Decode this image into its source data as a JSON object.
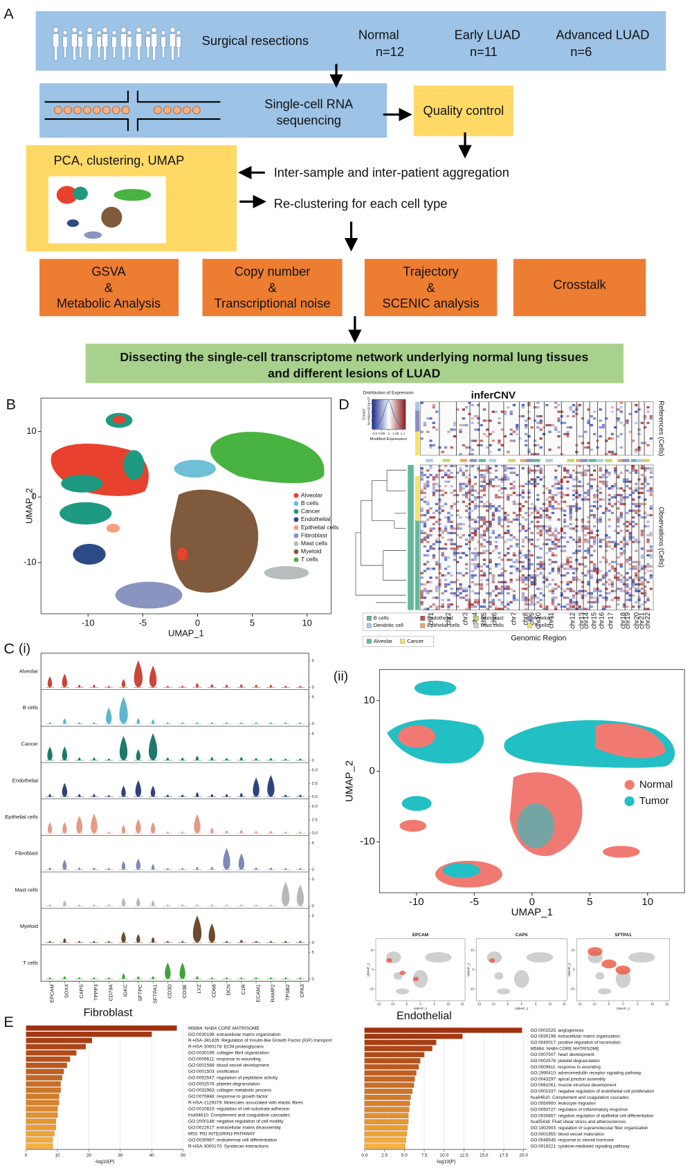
{
  "panel_a": {
    "label": "A",
    "resections": "Surgical resections",
    "groups": [
      {
        "name": "Normal",
        "n": "n=12"
      },
      {
        "name": "Early LUAD",
        "n": "n=11"
      },
      {
        "name": "Advanced LUAD",
        "n": "n=6"
      }
    ],
    "sequencing": [
      "Single-cell RNA",
      "sequencing"
    ],
    "qc": "Quality control",
    "pca": "PCA, clustering, UMAP",
    "aggregation": "Inter-sample and inter-patient aggregation",
    "reclustering": "Re-clustering for each cell type",
    "analyses": [
      [
        "GSVA",
        "&",
        "Metabolic Analysis"
      ],
      [
        "Copy number",
        "&",
        "Transcriptional noise"
      ],
      [
        "Trajectory",
        "&",
        "SCENIC analysis"
      ],
      [
        "Crosstalk"
      ]
    ],
    "conclusion": [
      "Dissecting the single-cell transcriptome network underlying normal lung tissues",
      "and different lesions of LUAD"
    ]
  },
  "panel_b": {
    "label": "B",
    "xlabel": "UMAP_1",
    "ylabel": "UMAP_2",
    "xlim": [
      -14.3,
      12.2
    ],
    "ylim": [
      -17.8,
      15.1
    ],
    "xticks": [
      -10,
      -5,
      0,
      5,
      10
    ],
    "yticks": [
      -10,
      0,
      10
    ],
    "legend": [
      {
        "name": "Alveolar",
        "color": "#e8412e"
      },
      {
        "name": "B cells",
        "color": "#6fc0d6"
      },
      {
        "name": "Cancer",
        "color": "#1e9a82"
      },
      {
        "name": "Endothelial",
        "color": "#2c4a86"
      },
      {
        "name": "Epithelial cells",
        "color": "#f2a07f"
      },
      {
        "name": "Fibroblast",
        "color": "#8a94c0"
      },
      {
        "name": "Mast cells",
        "color": "#b7bcbc"
      },
      {
        "name": "Myeloid",
        "color": "#7f5a3c"
      },
      {
        "name": "T cells",
        "color": "#48b341"
      }
    ]
  },
  "panel_c": {
    "label": "C",
    "sub1": "(i)",
    "sub2": "(ii)",
    "genes": [
      "EPCAM",
      "SOX4",
      "CAPS",
      "TPPP3",
      "CD79A",
      "IGKC",
      "SFTPC",
      "SFTPA1",
      "CD3D",
      "CD3E",
      "LYZ",
      "CD68",
      "DCN",
      "C1R",
      "ECAM1",
      "RAMP2",
      "TPSB2",
      "CPA3"
    ],
    "cell_types": [
      "Alveolar",
      "B cells",
      "Cancer",
      "Endothelial",
      "Epithelial cells",
      "Fibroblast",
      "Mast cells",
      "Myeloid",
      "T cells"
    ],
    "colors": [
      "#c9473a",
      "#5fb6cc",
      "#1d7a6a",
      "#2f437a",
      "#e49a85",
      "#7f8ab8",
      "#b5b9b9",
      "#6b4a30",
      "#3ea33a"
    ],
    "row_ylim": [
      0,
      6
    ],
    "row_ticks": [
      [
        0,
        5
      ],
      [
        0,
        5
      ],
      [
        0,
        5
      ],
      [
        {
          "value": 0,
          "label": "0.0"
        },
        2.5,
        {
          "value": 5,
          "label": "5.0"
        }
      ],
      [
        {
          "value": 0,
          "label": "0.0"
        },
        2.5,
        {
          "value": 5,
          "label": "5.0"
        }
      ],
      [
        0,
        5
      ],
      [
        0,
        5
      ],
      [
        0,
        5
      ],
      [
        0,
        5
      ]
    ],
    "violin_max": [
      [
        2,
        2.5,
        0.5,
        0.5,
        0.3,
        1.5,
        5,
        4,
        0.3,
        0.3,
        0.8,
        0.6,
        0.5,
        0.6,
        0.5,
        0.5,
        0.3,
        0.3
      ],
      [
        0.3,
        1,
        0.3,
        0.3,
        3,
        5,
        1,
        0.8,
        0.3,
        0.3,
        0.3,
        0.3,
        0.3,
        0.3,
        0.3,
        0.3,
        0.3,
        0.3
      ],
      [
        2.5,
        2.5,
        0.5,
        0.5,
        0.3,
        4.5,
        2,
        5,
        0.5,
        0.5,
        0.8,
        0.6,
        0.4,
        0.6,
        0.4,
        0.4,
        0.3,
        0.3
      ],
      [
        0.5,
        2.5,
        0.5,
        0.5,
        0.3,
        2,
        3,
        2,
        0.4,
        0.4,
        0.8,
        0.5,
        0.5,
        0.7,
        3.5,
        4,
        0.4,
        0.4
      ],
      [
        2,
        2,
        3.2,
        3.6,
        0.3,
        1.5,
        2.6,
        2,
        0.3,
        0.3,
        3.5,
        1,
        0.5,
        0.6,
        0.4,
        0.4,
        0.3,
        0.3
      ],
      [
        0.4,
        1.8,
        0.4,
        0.4,
        0.3,
        1.5,
        2,
        1,
        0.3,
        0.3,
        0.5,
        0.5,
        4,
        3,
        0.4,
        0.4,
        0.3,
        0.3
      ],
      [
        0.3,
        1,
        0.3,
        0.3,
        0.3,
        1.5,
        1.5,
        1,
        0.3,
        0.3,
        0.3,
        0.3,
        0.3,
        0.3,
        0.3,
        0.3,
        4.5,
        4
      ],
      [
        0.3,
        0.8,
        0.3,
        0.3,
        0.3,
        2,
        1.5,
        1,
        0.3,
        0.3,
        5,
        3.5,
        0.3,
        0.5,
        0.3,
        0.3,
        0.3,
        0.3
      ],
      [
        0.3,
        0.5,
        0.3,
        0.3,
        0.3,
        1,
        0.5,
        0.5,
        3,
        3,
        0.5,
        0.3,
        0.3,
        0.3,
        0.3,
        0.3,
        0.3,
        0.3
      ]
    ],
    "umap": {
      "xlabel": "UMAP_1",
      "ylabel": "UMAP_2",
      "xlim": [
        -13.2,
        13.2
      ],
      "ylim": [
        -17.2,
        14.4
      ],
      "xticks": [
        -10,
        -5,
        0,
        5,
        10
      ],
      "yticks": [
        -10,
        0,
        10
      ],
      "legend": [
        {
          "name": "Normal",
          "color": "#f07a72"
        },
        {
          "name": "Tumor",
          "color": "#22bfc4"
        }
      ]
    },
    "features": [
      "EPCAM",
      "CAPS",
      "SFTPA1"
    ],
    "feature_xlim": [
      -16,
      16
    ],
    "feature_ylim": [
      -16,
      16
    ],
    "feature_xticks": [
      -15,
      -10,
      -5,
      0,
      5,
      10,
      15
    ],
    "feature_yticks": [
      -10,
      0,
      10
    ]
  },
  "panel_d": {
    "label": "D",
    "title": "inferCNV",
    "key_title": "Distribution of Expression",
    "key_ylabel": "Count",
    "key_xlabel": "Modified Expression",
    "key_xlim": [
      0.88,
      1.12
    ],
    "key_xticks": [
      0.9,
      0.95,
      1,
      1.05,
      1.1
    ],
    "key_ylim": [
      0,
      17000000
    ],
    "key_yticks": [
      {
        "value": 5000000,
        "label": "5e+06"
      },
      {
        "value": 10000000,
        "label": "1e+07"
      },
      {
        "value": 15000000,
        "label": "1.5e+07"
      }
    ],
    "references": "References (Cells)",
    "observations": "Observations (Cells)",
    "xlabel": "Genomic Region",
    "chromosomes": [
      "chr1",
      "chr2",
      "chr3",
      "chr4",
      "chr5",
      "chr6",
      "chr7",
      "chr8",
      "chr9",
      "chr10",
      "chr11",
      "chr12",
      "chr13",
      "chr14",
      "chr15",
      "chr16",
      "chr17",
      "chr18",
      "chr19",
      "chr20",
      "chr21",
      "chr22"
    ],
    "legend": [
      {
        "name": "B cells",
        "color": "#5fb99a"
      },
      {
        "name": "Endothelial",
        "color": "#c0504d"
      },
      {
        "name": "Fibroblast",
        "color": "#c6d36a"
      },
      {
        "name": "Myeloid",
        "color": "#8c8fbf"
      },
      {
        "name": "Dendritic cell",
        "color": "#a9cbe8"
      },
      {
        "name": "Epithelial cells",
        "color": "#e8a46b"
      },
      {
        "name": "Mast cells",
        "color": "#cfcfcf"
      },
      {
        "name": "T cells",
        "color": "#f2e36b"
      }
    ],
    "legend2": [
      {
        "name": "Alveolar",
        "color": "#5fb99a"
      },
      {
        "name": "Cancer",
        "color": "#f2e36b"
      }
    ]
  },
  "panel_e": {
    "label": "E",
    "xlabel": "-log10(P)",
    "fibroblast": {
      "title": "Fibroblast",
      "xlim": [
        0,
        50
      ],
      "xticks": [
        0,
        10,
        20,
        30,
        40,
        50
      ],
      "terms": [
        "M5884: NABA CORE MATRISOME",
        "GO:0030198: extracellular matrix organization",
        "R-HSA-381426: Regulation of Insulin-like Growth Factor (IGF) transport",
        "R-HSA-3000178: ECM proteoglycans",
        "GO:0030199: collagen fibril organization",
        "GO:0009611: response to wounding",
        "GO:0001568: blood vessel development",
        "GO:0001503: ossification",
        "GO:0052547: regulation of peptidase activity",
        "GO:0002576: platelet degranulation",
        "GO:0032963: collagen metabolic process",
        "GO:0070848: response to growth factor",
        "R-HSA-2129379: Molecules associated with elastic fibres",
        "GO:0010810: regulation of cell-substrate adhesion",
        "hsa04610: Complement and coagulation cascades",
        "GO:2000146: negative regulation of cell motility",
        "GO:0022617: extracellular matrix disassembly",
        "M53: PID INTEGRIN3 PATHWAY",
        "GO:0035987: endodermal cell differentiation",
        "R-HSA-3000170: Syndecan interactions"
      ],
      "values": [
        48,
        40,
        21,
        19,
        16,
        14,
        13,
        12,
        11.5,
        11,
        11,
        10.5,
        10.5,
        10,
        10,
        9.5,
        9.5,
        9,
        8.5,
        8.5
      ]
    },
    "endothelial": {
      "title": "Endothelial",
      "xlim": [
        0,
        20.4
      ],
      "xticks": [
        {
          "value": 0,
          "label": "0.0"
        },
        2.5,
        {
          "value": 5,
          "label": "5.0"
        },
        7.5,
        {
          "value": 10,
          "label": "10.0"
        },
        12.5,
        {
          "value": 15,
          "label": "15.0"
        },
        17.5,
        {
          "value": 20,
          "label": "20.0"
        }
      ],
      "terms": [
        "GO:0001525: angiogenesis",
        "GO:0030198: extracellular matrix organization",
        "GO:0040017: positive regulation of locomotion",
        "M5884: NABA CORE MATRISOME",
        "GO:0007507: heart development",
        "GO:0002576: platelet degranulation",
        "GO:0009611: response to wounding",
        "GO:1990410: adrenomedullin receptor signaling pathway",
        "GO:0043297: apical junction assembly",
        "GO:0061061: muscle structure development",
        "GO:0001937: negative regulation of endothelial cell proliferation",
        "hsa04610: Complement and coagulation cascades",
        "GO:0050900: leukocyte migration",
        "GO:0050727: regulation of inflammatory response",
        "GO:0030857: negative regulation of epithelial cell differentiation",
        "hsa05418: Fluid shear stress and atherosclerosis",
        "GO:1902903: regulation of supramolecular fiber organization",
        "GO:0001955: blood vessel maturation",
        "GO:0048545: response to steroid hormone",
        "GO:0019221: cytokine-mediated signaling pathway"
      ],
      "values": [
        19.8,
        12.3,
        9,
        8.5,
        7.5,
        7,
        6.8,
        6.5,
        6.3,
        6.2,
        6,
        5.8,
        5.7,
        5.6,
        5.5,
        5.5,
        5.4,
        5.3,
        5.2,
        5.1
      ]
    }
  }
}
